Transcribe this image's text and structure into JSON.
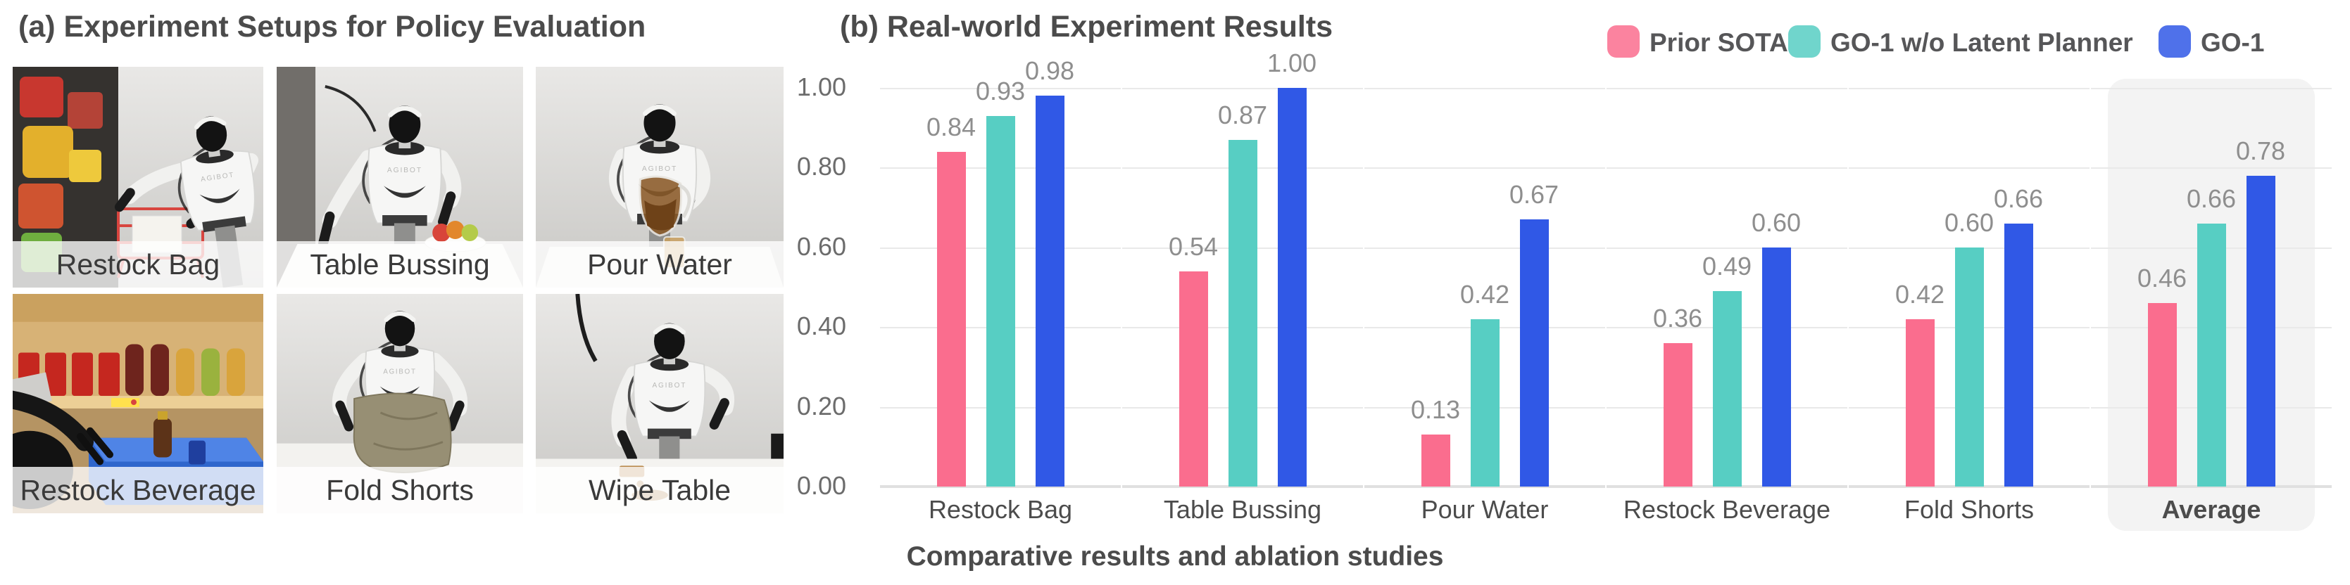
{
  "panel_a": {
    "title": "(a) Experiment Setups for Policy Evaluation",
    "setups": [
      {
        "label": "Restock Bag",
        "scene": "restock-bag"
      },
      {
        "label": "Table Bussing",
        "scene": "table-bussing"
      },
      {
        "label": "Pour Water",
        "scene": "pour-water"
      },
      {
        "label": "Restock Beverage",
        "scene": "restock-beverage"
      },
      {
        "label": "Fold Shorts",
        "scene": "fold-shorts"
      },
      {
        "label": "Wipe Table",
        "scene": "wipe-table"
      }
    ]
  },
  "panel_b": {
    "title": "(b) Real-world Experiment Results",
    "caption": "Comparative results and ablation studies",
    "legend": [
      {
        "label": "Prior SOTA",
        "color": "#FA6D8E"
      },
      {
        "label": "GO-1 w/o Latent Planner",
        "color": "#57CEC3"
      },
      {
        "label": "GO-1",
        "color": "#3058E6"
      }
    ],
    "chart_data": {
      "type": "bar",
      "title": "(b) Real-world Experiment Results",
      "categories": [
        "Restock Bag",
        "Table Bussing",
        "Pour Water",
        "Restock Beverage",
        "Fold Shorts",
        "Average"
      ],
      "series": [
        {
          "name": "Prior SOTA",
          "color": "#FA6D8E",
          "values": [
            0.84,
            0.54,
            0.13,
            0.36,
            0.42,
            0.46
          ]
        },
        {
          "name": "GO-1 w/o Latent Planner",
          "color": "#57CEC3",
          "values": [
            0.93,
            0.87,
            0.42,
            0.49,
            0.6,
            0.66
          ]
        },
        {
          "name": "GO-1",
          "color": "#3058E6",
          "values": [
            0.98,
            1.0,
            0.67,
            0.6,
            0.66,
            0.78
          ]
        }
      ],
      "ylim": [
        0,
        1.0
      ],
      "yticks": [
        "0.00",
        "0.20",
        "0.40",
        "0.60",
        "0.80",
        "1.00"
      ],
      "grid": true,
      "value_labels": true,
      "legend_position": "top-right",
      "highlight_category": "Average",
      "xlabel": "",
      "ylabel": ""
    }
  }
}
